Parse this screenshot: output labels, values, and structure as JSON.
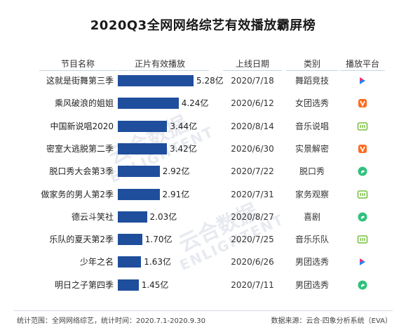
{
  "watermark": {
    "main": "云合数据",
    "sub": "ENLIGHTENT"
  },
  "headers": {
    "name": "节目名称",
    "bar": "正片有效播放",
    "date": "上线日期",
    "type": "类别",
    "platform": "播放平台"
  },
  "footer": {
    "left": "统计范围：全网网络综艺，统计时间：2020.7.1-2020.9.30",
    "right": "数据来源：云合·四象分析系统（EVA）"
  },
  "colors": {
    "bar": "#1f4e9c",
    "platform": {
      "youku": "#1f86ff",
      "mango": "#ff6a1f",
      "iqiyi": "#7ac142",
      "tencent": "#2fc27a"
    }
  },
  "chart_data": {
    "type": "bar",
    "orientation": "horizontal",
    "title": "2020Q3全网网络综艺有效播放霸屏榜",
    "unit": "亿",
    "categories": [
      "这就是街舞第三季",
      "乘风破浪的姐姐",
      "中国新说唱2020",
      "密室大逃脱第二季",
      "脱口秀大会第3季",
      "做家务的男人第2季",
      "德云斗笑社",
      "乐队的夏天第2季",
      "少年之名",
      "明日之子第四季"
    ],
    "values": [
      5.28,
      4.24,
      3.44,
      3.42,
      2.92,
      2.91,
      2.03,
      1.7,
      1.63,
      1.45
    ],
    "value_labels": [
      "5.28亿",
      "4.24亿",
      "3.44亿",
      "3.42亿",
      "2.92亿",
      "2.91亿",
      "2.03亿",
      "1.70亿",
      "1.63亿",
      "1.45亿"
    ],
    "dates": [
      "2020/7/18",
      "2020/6/12",
      "2020/8/14",
      "2020/6/30",
      "2020/7/22",
      "2020/7/31",
      "2020/8/27",
      "2020/7/25",
      "2020/6/26",
      "2020/7/11"
    ],
    "types": [
      "舞蹈竞技",
      "女团选秀",
      "音乐说唱",
      "实景解密",
      "脱口秀",
      "家务观察",
      "喜剧",
      "音乐乐队",
      "男团选秀",
      "男团选秀"
    ],
    "platforms": [
      "youku",
      "mango",
      "iqiyi",
      "mango",
      "tencent",
      "iqiyi",
      "tencent",
      "iqiyi",
      "youku",
      "tencent"
    ],
    "xlim": [
      0,
      5.28
    ]
  }
}
